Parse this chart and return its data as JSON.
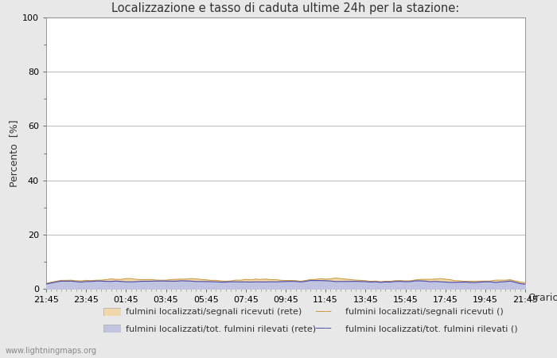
{
  "title": "Localizzazione e tasso di caduta ultime 24h per la stazione:",
  "xlabel": "Orario",
  "ylabel": "Percento  [%]",
  "xlim_labels": [
    "21:45",
    "23:45",
    "01:45",
    "03:45",
    "05:45",
    "07:45",
    "09:45",
    "11:45",
    "13:45",
    "15:45",
    "17:45",
    "19:45",
    "21:45"
  ],
  "ylim": [
    0,
    100
  ],
  "yticks": [
    0,
    20,
    40,
    60,
    80,
    100
  ],
  "yticks_minor": [
    10,
    30,
    50,
    70,
    90
  ],
  "background_color": "#e8e8e8",
  "plot_bg_color": "#ffffff",
  "grid_color": "#b0b0b0",
  "fill_color_orange": "#f0d8a8",
  "fill_color_blue": "#c0c4e0",
  "line_color_orange": "#c8963c",
  "line_color_blue": "#4848b0",
  "legend_labels": [
    "fulmini localizzati/segnali ricevuti (rete)",
    "fulmini localizzati/segnali ricevuti ()",
    "fulmini localizzati/tot. fulmini rilevati (rete)",
    "fulmini localizzati/tot. fulmini rilevati ()"
  ],
  "watermark": "www.lightningmaps.org",
  "n_points": 97
}
